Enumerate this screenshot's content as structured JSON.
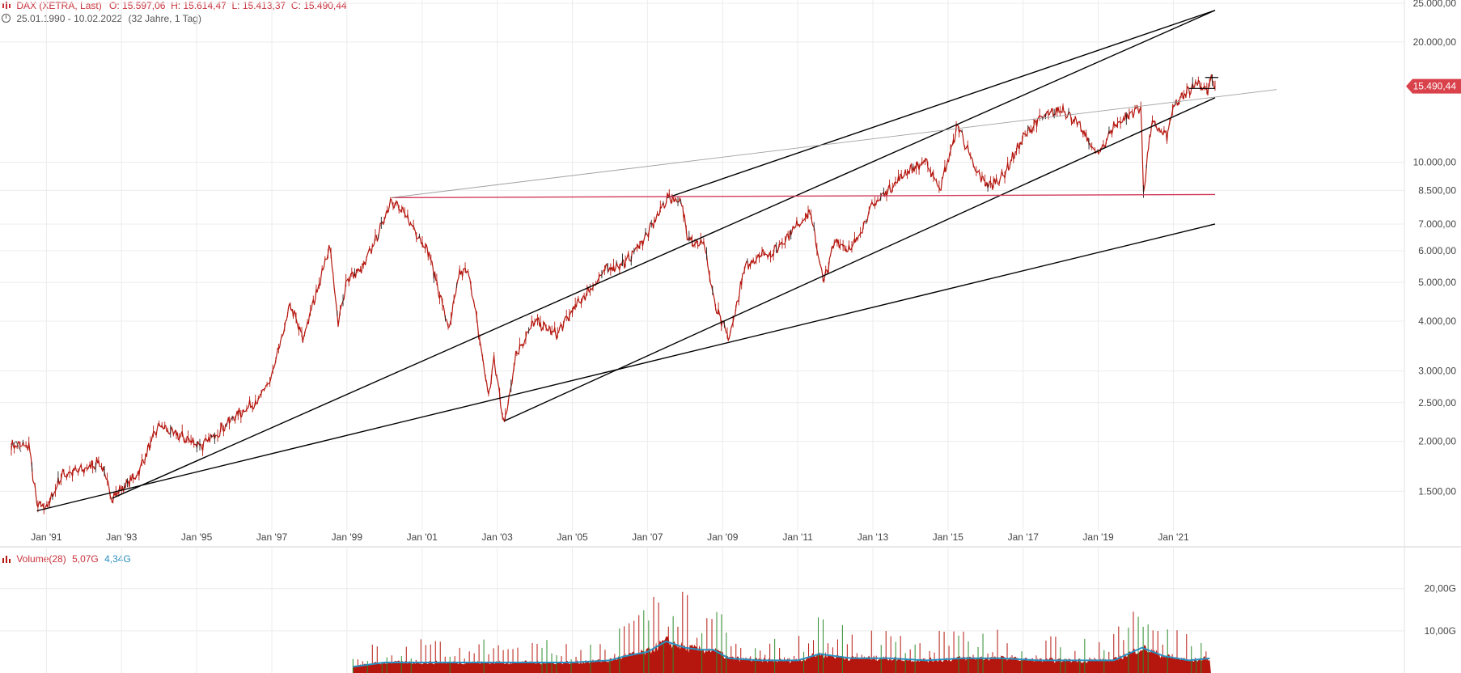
{
  "header": {
    "title": "DAX (XETRA, Last)",
    "ohlc": "O: 15.597,06  H: 15.614,47  L: 15.413,37  C: 15.490,44",
    "range": "25.01.1990 - 10.02.2022",
    "range_note": "(32 Jahre, 1 Tag)",
    "last_value_label": "15.490,44"
  },
  "volume_header": {
    "title": "Volume(28)",
    "value1": "5,07G",
    "value2": "4,34G"
  },
  "colors": {
    "candle": "#b5170f",
    "up_bar": "#2e8b2e",
    "volume_avg": "#2a8fc0",
    "horizontal_line": "#d23a5a",
    "last_tag": "#d9414b",
    "trend_line": "#000000",
    "channel_line_light": "#a0a0a0"
  },
  "chart_data": [
    {
      "type": "line",
      "scale": "log",
      "xlim": [
        "1990-01-25",
        "2022-02-10"
      ],
      "ylim": [
        1300,
        25000
      ],
      "x_tick_labels": [
        "Jan '91",
        "Jan '93",
        "Jan '95",
        "Jan '97",
        "Jan '99",
        "Jan '01",
        "Jan '03",
        "Jan '05",
        "Jan '07",
        "Jan '09",
        "Jan '11",
        "Jan '13",
        "Jan '15",
        "Jan '17",
        "Jan '19",
        "Jan '21"
      ],
      "x_tick_dates": [
        "1991-01-01",
        "1993-01-01",
        "1995-01-01",
        "1997-01-01",
        "1999-01-01",
        "2001-01-01",
        "2003-01-01",
        "2005-01-01",
        "2007-01-01",
        "2009-01-01",
        "2011-01-01",
        "2013-01-01",
        "2015-01-01",
        "2017-01-01",
        "2019-01-01",
        "2021-01-01"
      ],
      "y_ticks": [
        1500,
        2000,
        2500,
        3000,
        4000,
        5000,
        6000,
        7000,
        8500,
        10000,
        20000,
        25000
      ],
      "y_tick_labels": [
        "1.500,00",
        "2.000,00",
        "2.500,00",
        "3.000,00",
        "4.000,00",
        "5.000,00",
        "6.000,00",
        "7.000,00",
        "8.500,00",
        "10.000,00",
        "20.000,00",
        "25.000,00"
      ],
      "last_value": 15490.44,
      "series": [
        {
          "points": [
            [
              "1990-01-25",
              1950
            ],
            [
              "1990-07-15",
              1950
            ],
            [
              "1990-10-01",
              1380
            ],
            [
              "1991-01-15",
              1380
            ],
            [
              "1991-06-01",
              1650
            ],
            [
              "1992-01-01",
              1700
            ],
            [
              "1992-06-01",
              1780
            ],
            [
              "1992-10-01",
              1450
            ],
            [
              "1993-01-01",
              1520
            ],
            [
              "1993-06-01",
              1650
            ],
            [
              "1994-01-01",
              2200
            ],
            [
              "1994-05-01",
              2100
            ],
            [
              "1995-03-01",
              1950
            ],
            [
              "1995-09-01",
              2150
            ],
            [
              "1996-01-01",
              2300
            ],
            [
              "1996-09-01",
              2550
            ],
            [
              "1997-01-01",
              2900
            ],
            [
              "1997-07-01",
              4400
            ],
            [
              "1997-10-28",
              3600
            ],
            [
              "1998-01-01",
              4100
            ],
            [
              "1998-07-20",
              6200
            ],
            [
              "1998-10-08",
              3900
            ],
            [
              "1999-01-01",
              5100
            ],
            [
              "1999-06-01",
              5400
            ],
            [
              "1999-12-01",
              6900
            ],
            [
              "2000-03-07",
              8100
            ],
            [
              "2000-09-01",
              7100
            ],
            [
              "2001-03-01",
              6000
            ],
            [
              "2001-09-21",
              3800
            ],
            [
              "2002-01-01",
              5300
            ],
            [
              "2002-04-01",
              5300
            ],
            [
              "2002-10-09",
              2600
            ],
            [
              "2002-12-01",
              3200
            ],
            [
              "2003-03-12",
              2200
            ],
            [
              "2003-07-01",
              3300
            ],
            [
              "2004-01-01",
              4000
            ],
            [
              "2004-08-01",
              3700
            ],
            [
              "2005-01-01",
              4250
            ],
            [
              "2005-12-01",
              5400
            ],
            [
              "2006-06-01",
              5600
            ],
            [
              "2007-01-01",
              6600
            ],
            [
              "2007-07-13",
              8150
            ],
            [
              "2007-12-01",
              8000
            ],
            [
              "2008-01-22",
              6400
            ],
            [
              "2008-07-01",
              6300
            ],
            [
              "2008-10-24",
              4300
            ],
            [
              "2009-03-06",
              3600
            ],
            [
              "2009-08-01",
              5400
            ],
            [
              "2010-01-01",
              5900
            ],
            [
              "2010-05-01",
              5900
            ],
            [
              "2011-01-01",
              7000
            ],
            [
              "2011-05-01",
              7500
            ],
            [
              "2011-09-12",
              5000
            ],
            [
              "2012-01-01",
              6400
            ],
            [
              "2012-06-01",
              6000
            ],
            [
              "2013-01-01",
              7800
            ],
            [
              "2013-12-01",
              9500
            ],
            [
              "2014-06-01",
              10000
            ],
            [
              "2014-10-16",
              8600
            ],
            [
              "2015-04-10",
              12400
            ],
            [
              "2015-09-24",
              9500
            ],
            [
              "2016-02-11",
              8700
            ],
            [
              "2016-06-27",
              9300
            ],
            [
              "2017-01-01",
              11500
            ],
            [
              "2017-06-01",
              12800
            ],
            [
              "2018-01-23",
              13600
            ],
            [
              "2018-06-01",
              12600
            ],
            [
              "2018-12-27",
              10400
            ],
            [
              "2019-06-01",
              12300
            ],
            [
              "2020-02-19",
              13800
            ],
            [
              "2020-03-16",
              8440
            ],
            [
              "2020-06-01",
              12500
            ],
            [
              "2020-10-30",
              11600
            ],
            [
              "2021-01-01",
              13700
            ],
            [
              "2021-08-13",
              15900
            ],
            [
              "2021-12-01",
              15100
            ],
            [
              "2022-01-05",
              16200
            ],
            [
              "2022-02-10",
              15490
            ]
          ]
        }
      ],
      "lines": [
        {
          "from": [
            "1990-10-01",
            1340
          ],
          "to": [
            "2022-02-10",
            7000
          ]
        },
        {
          "from": [
            "1992-10-01",
            1440
          ],
          "to": [
            "2022-02-10",
            24000
          ]
        },
        {
          "from": [
            "2003-03-12",
            2250
          ],
          "to": [
            "2022-02-10",
            14500
          ]
        },
        {
          "from": [
            "2007-07-13",
            8150
          ],
          "to": [
            "2022-02-10",
            24000
          ]
        },
        {
          "from": [
            "2000-03-07",
            8150
          ],
          "to": [
            "2022-02-10",
            8300
          ]
        },
        {
          "from": [
            "2000-03-07",
            8150
          ],
          "to": [
            "2023-10-01",
            15200
          ]
        }
      ]
    },
    {
      "type": "bar",
      "title": "Volume(28)",
      "ylim": [
        0,
        28
      ],
      "y_ticks": [
        10,
        20
      ],
      "y_tick_labels": [
        "10,00G",
        "20,00G"
      ],
      "xlim": [
        "1990-01-25",
        "2022-02-10"
      ],
      "series": [
        {
          "name": "Volume(28)",
          "x": [
            "1999-03-01",
            "2000-01-01",
            "2001-01-01",
            "2002-01-01",
            "2003-01-01",
            "2004-01-01",
            "2005-01-01",
            "2006-01-01",
            "2006-06-01",
            "2007-01-01",
            "2007-07-01",
            "2008-01-01",
            "2008-06-01",
            "2008-10-01",
            "2009-03-01",
            "2010-01-01",
            "2011-01-01",
            "2011-08-01",
            "2012-06-01",
            "2013-06-01",
            "2014-06-01",
            "2015-06-01",
            "2016-06-01",
            "2017-06-01",
            "2018-06-01",
            "2019-06-01",
            "2020-03-01",
            "2020-10-01",
            "2021-06-01",
            "2022-01-01"
          ],
          "values": [
            1.5,
            2.5,
            2.5,
            2.5,
            2.5,
            2.5,
            2.5,
            3.0,
            4.0,
            5.0,
            7.5,
            6.0,
            5.5,
            5.5,
            3.5,
            3.0,
            3.0,
            4.5,
            3.5,
            3.5,
            3.0,
            3.5,
            3.5,
            3.0,
            3.0,
            3.0,
            6.0,
            4.0,
            3.0,
            3.5
          ]
        }
      ]
    }
  ]
}
